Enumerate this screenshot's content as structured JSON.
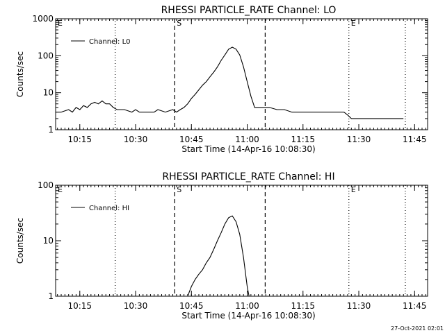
{
  "chart_data": [
    {
      "type": "line",
      "title": "RHESSI PARTICLE_RATE Channel: LO",
      "xlabel": "Start Time (14-Apr-16 10:08:30)",
      "ylabel": "Counts/sec",
      "yscale": "log",
      "ylim": [
        1,
        1000
      ],
      "xlim": [
        "10:08:30",
        "11:48:30"
      ],
      "x_ticks": [
        "10:15",
        "10:30",
        "10:45",
        "11:00",
        "11:15",
        "11:30",
        "11:45"
      ],
      "y_ticks": [
        "1",
        "10",
        "100",
        "1000"
      ],
      "legend": {
        "position": "top-left",
        "entries": [
          "Channel: L0"
        ]
      },
      "event_markers": [
        {
          "label": "E",
          "time": "10:08:30",
          "style": "dotted"
        },
        {
          "label": "",
          "time": "10:24:30",
          "style": "dotted"
        },
        {
          "label": "S",
          "time": "10:40:30",
          "style": "dashed"
        },
        {
          "label": "",
          "time": "11:04:50",
          "style": "dashed"
        },
        {
          "label": "E",
          "time": "11:27:20",
          "style": "dotted"
        },
        {
          "label": "",
          "time": "11:42:30",
          "style": "dotted"
        }
      ],
      "series": [
        {
          "name": "Channel: L0",
          "x": [
            "10:08:30",
            "10:10:00",
            "10:12:00",
            "10:13:00",
            "10:14:00",
            "10:15:00",
            "10:16:00",
            "10:17:00",
            "10:18:00",
            "10:19:00",
            "10:20:00",
            "10:21:00",
            "10:22:00",
            "10:23:00",
            "10:24:00",
            "10:25:00",
            "10:27:00",
            "10:29:00",
            "10:30:00",
            "10:31:00",
            "10:33:00",
            "10:35:00",
            "10:36:00",
            "10:38:00",
            "10:40:00",
            "10:41:00",
            "10:42:00",
            "10:43:00",
            "10:44:00",
            "10:45:00",
            "10:46:00",
            "10:47:00",
            "10:48:00",
            "10:49:00",
            "10:50:00",
            "10:51:00",
            "10:52:00",
            "10:53:00",
            "10:54:00",
            "10:55:00",
            "10:56:00",
            "10:57:00",
            "10:58:00",
            "10:59:00",
            "11:00:00",
            "11:01:00",
            "11:02:00",
            "11:03:00",
            "11:04:00",
            "11:06:00",
            "11:08:00",
            "11:10:00",
            "11:12:00",
            "11:15:00",
            "11:18:00",
            "11:20:00",
            "11:23:00",
            "11:25:00",
            "11:26:00",
            "11:27:00",
            "11:28:00",
            "11:30:00",
            "11:33:00",
            "11:36:00",
            "11:39:00",
            "11:42:00"
          ],
          "y": [
            3,
            3,
            3.5,
            3,
            4,
            3.5,
            4.5,
            4,
            5,
            5.5,
            5,
            6,
            5,
            5,
            4,
            3.5,
            3.5,
            3,
            3.5,
            3,
            3,
            3,
            3.5,
            3,
            3.5,
            3,
            3.5,
            4,
            5,
            7,
            9,
            12,
            16,
            20,
            27,
            36,
            50,
            75,
            105,
            150,
            170,
            150,
            105,
            50,
            20,
            8,
            4,
            4,
            4,
            4,
            3.5,
            3.5,
            3,
            3,
            3,
            3,
            3,
            3,
            3,
            2.5,
            2,
            2,
            2,
            2,
            2,
            2
          ]
        }
      ]
    },
    {
      "type": "line",
      "title": "RHESSI PARTICLE_RATE Channel: HI",
      "xlabel": "Start Time (14-Apr-16 10:08:30)",
      "ylabel": "Counts/sec",
      "yscale": "log",
      "ylim": [
        1,
        100
      ],
      "xlim": [
        "10:08:30",
        "11:48:30"
      ],
      "x_ticks": [
        "10:15",
        "10:30",
        "10:45",
        "11:00",
        "11:15",
        "11:30",
        "11:45"
      ],
      "y_ticks": [
        "1",
        "10",
        "100"
      ],
      "legend": {
        "position": "top-left",
        "entries": [
          "Channel: HI"
        ]
      },
      "event_markers": [
        {
          "label": "E",
          "time": "10:08:30",
          "style": "dotted"
        },
        {
          "label": "",
          "time": "10:24:30",
          "style": "dotted"
        },
        {
          "label": "S",
          "time": "10:40:30",
          "style": "dashed"
        },
        {
          "label": "",
          "time": "11:04:50",
          "style": "dashed"
        },
        {
          "label": "E",
          "time": "11:27:20",
          "style": "dotted"
        },
        {
          "label": "",
          "time": "11:42:30",
          "style": "dotted"
        }
      ],
      "series": [
        {
          "name": "Channel: HI",
          "x": [
            "10:44:00",
            "10:45:00",
            "10:46:00",
            "10:47:00",
            "10:48:00",
            "10:49:00",
            "10:50:00",
            "10:51:00",
            "10:52:00",
            "10:53:00",
            "10:54:00",
            "10:55:00",
            "10:56:00",
            "10:57:00",
            "10:58:00",
            "10:59:00",
            "11:00:00",
            "11:00:30"
          ],
          "y": [
            1,
            1.5,
            2,
            2.5,
            3,
            4,
            5,
            7,
            10,
            14,
            20,
            26,
            28,
            22,
            13,
            5,
            1.5,
            1
          ]
        }
      ]
    }
  ],
  "footer": {
    "timestamp": "27-Oct-2021 02:01"
  }
}
